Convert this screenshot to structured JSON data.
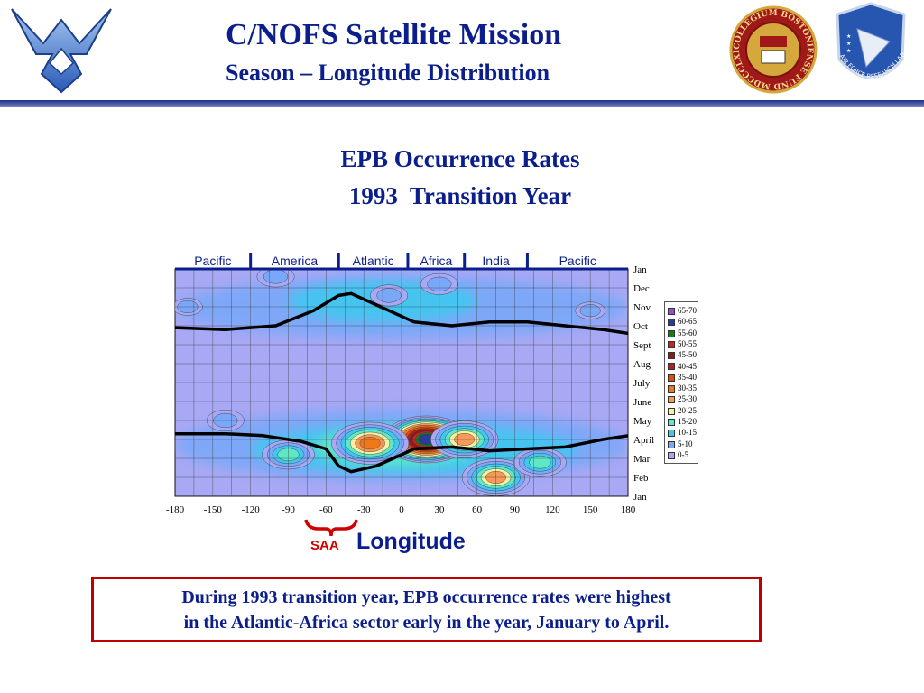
{
  "header": {
    "title": "C/NOFS Satellite Mission",
    "subtitle": "Season – Longitude Distribution"
  },
  "logos": {
    "air_force": "air-force-wings-logo",
    "boston_college_seal_text": "COLLEGIUM BOSTONIENSE FUND MDCCCLXIII",
    "afrl_shield_text": "AIR FORCE RESEARCH LABORATORY"
  },
  "chart_data": {
    "type": "heatmap",
    "title_line1": "EPB Occurrence Rates",
    "title_line2": "1993  Transition Year",
    "xlabel": "Longitude",
    "x_ticks": [
      -180,
      -150,
      -120,
      -90,
      -60,
      -30,
      0,
      30,
      60,
      90,
      120,
      150,
      180
    ],
    "x_tick_labels": [
      "-180",
      "-150",
      "-120",
      "-90",
      "-60",
      "-30",
      "0",
      "30",
      "60",
      "90",
      "120",
      "150",
      "180"
    ],
    "xlim": [
      -180,
      180
    ],
    "y_tick_labels": [
      "Jan",
      "Feb",
      "Mar",
      "April",
      "May",
      "June",
      "July",
      "Aug",
      "Sept",
      "Oct",
      "Nov",
      "Dec",
      "Jan"
    ],
    "sectors": [
      {
        "name": "Pacific",
        "from": -180,
        "to": -120
      },
      {
        "name": "America",
        "from": -120,
        "to": -50
      },
      {
        "name": "Atlantic",
        "from": -50,
        "to": 5
      },
      {
        "name": "Africa",
        "from": 5,
        "to": 50
      },
      {
        "name": "India",
        "from": 50,
        "to": 100
      },
      {
        "name": "Pacific",
        "from": 100,
        "to": 180
      }
    ],
    "legend": [
      {
        "label": "65-70",
        "color": "#9b4dc9"
      },
      {
        "label": "60-65",
        "color": "#283ca0"
      },
      {
        "label": "55-60",
        "color": "#1a7a1a"
      },
      {
        "label": "50-55",
        "color": "#cc2222"
      },
      {
        "label": "45-50",
        "color": "#8b1a1a"
      },
      {
        "label": "40-45",
        "color": "#b22020"
      },
      {
        "label": "35-40",
        "color": "#e04a10"
      },
      {
        "label": "30-35",
        "color": "#f07818"
      },
      {
        "label": "25-30",
        "color": "#f59a5a"
      },
      {
        "label": "20-25",
        "color": "#f6f0a0"
      },
      {
        "label": "15-20",
        "color": "#5ee8c8"
      },
      {
        "label": "10-15",
        "color": "#40c8f0"
      },
      {
        "label": "5-10",
        "color": "#7aa8f8"
      },
      {
        "label": "0-5",
        "color": "#a8a8f4"
      }
    ],
    "annotation": "SAA",
    "solstice_curve_upper": [
      [
        -180,
        8.9
      ],
      [
        -140,
        8.8
      ],
      [
        -100,
        9.0
      ],
      [
        -70,
        9.8
      ],
      [
        -50,
        10.6
      ],
      [
        -40,
        10.7
      ],
      [
        -20,
        10.1
      ],
      [
        10,
        9.2
      ],
      [
        40,
        9.0
      ],
      [
        70,
        9.2
      ],
      [
        100,
        9.2
      ],
      [
        130,
        9.0
      ],
      [
        160,
        8.8
      ],
      [
        180,
        8.6
      ]
    ],
    "solstice_curve_lower": [
      [
        -180,
        3.3
      ],
      [
        -140,
        3.3
      ],
      [
        -110,
        3.2
      ],
      [
        -80,
        2.9
      ],
      [
        -60,
        2.5
      ],
      [
        -50,
        1.6
      ],
      [
        -40,
        1.3
      ],
      [
        -20,
        1.6
      ],
      [
        10,
        2.5
      ],
      [
        40,
        2.6
      ],
      [
        70,
        2.4
      ],
      [
        100,
        2.5
      ],
      [
        130,
        2.6
      ],
      [
        160,
        3.0
      ],
      [
        180,
        3.2
      ]
    ],
    "hotspots": [
      {
        "lon": 20,
        "month": 3.0,
        "value": 67
      },
      {
        "lon": 50,
        "month": 3.0,
        "value": 30
      },
      {
        "lon": -25,
        "month": 2.8,
        "value": 35
      },
      {
        "lon": 75,
        "month": 1.0,
        "value": 30
      },
      {
        "lon": -90,
        "month": 2.2,
        "value": 22
      },
      {
        "lon": 110,
        "month": 1.8,
        "value": 22
      },
      {
        "lon": -140,
        "month": 4.0,
        "value": 14
      },
      {
        "lon": -10,
        "month": 10.6,
        "value": 14
      },
      {
        "lon": 30,
        "month": 11.2,
        "value": 14
      },
      {
        "lon": -100,
        "month": 11.6,
        "value": 14
      },
      {
        "lon": -170,
        "month": 10.0,
        "value": 10
      },
      {
        "lon": 150,
        "month": 9.8,
        "value": 10
      }
    ]
  },
  "caption": {
    "line1": "During 1993 transition year, EPB occurrence rates were highest",
    "line2": "in the Atlantic-Africa sector early in the year, January to April."
  }
}
